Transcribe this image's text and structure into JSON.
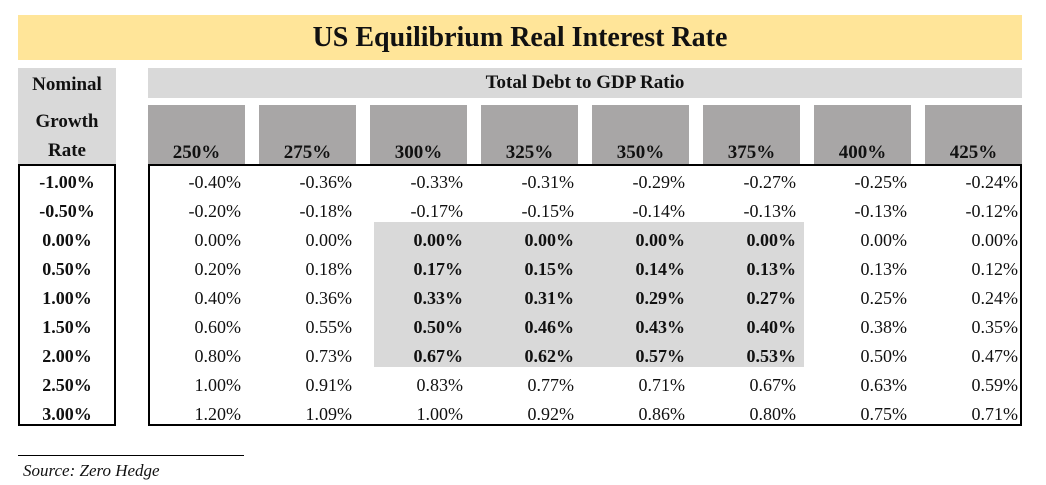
{
  "title": "US Equilibrium Real Interest Rate",
  "row_header": {
    "line1": "Nominal",
    "line2": "Growth",
    "line3": "Rate"
  },
  "column_group_header": "Total Debt to GDP Ratio",
  "columns": [
    "250%",
    "275%",
    "300%",
    "325%",
    "350%",
    "375%",
    "400%",
    "425%"
  ],
  "rows": [
    {
      "label": "-1.00%",
      "values": [
        "-0.40%",
        "-0.36%",
        "-0.33%",
        "-0.31%",
        "-0.29%",
        "-0.27%",
        "-0.25%",
        "-0.24%"
      ]
    },
    {
      "label": "-0.50%",
      "values": [
        "-0.20%",
        "-0.18%",
        "-0.17%",
        "-0.15%",
        "-0.14%",
        "-0.13%",
        "-0.13%",
        "-0.12%"
      ]
    },
    {
      "label": "0.00%",
      "values": [
        "0.00%",
        "0.00%",
        "0.00%",
        "0.00%",
        "0.00%",
        "0.00%",
        "0.00%",
        "0.00%"
      ]
    },
    {
      "label": "0.50%",
      "values": [
        "0.20%",
        "0.18%",
        "0.17%",
        "0.15%",
        "0.14%",
        "0.13%",
        "0.13%",
        "0.12%"
      ]
    },
    {
      "label": "1.00%",
      "values": [
        "0.40%",
        "0.36%",
        "0.33%",
        "0.31%",
        "0.29%",
        "0.27%",
        "0.25%",
        "0.24%"
      ]
    },
    {
      "label": "1.50%",
      "values": [
        "0.60%",
        "0.55%",
        "0.50%",
        "0.46%",
        "0.43%",
        "0.40%",
        "0.38%",
        "0.35%"
      ]
    },
    {
      "label": "2.00%",
      "values": [
        "0.80%",
        "0.73%",
        "0.67%",
        "0.62%",
        "0.57%",
        "0.53%",
        "0.50%",
        "0.47%"
      ]
    },
    {
      "label": "2.50%",
      "values": [
        "1.00%",
        "0.91%",
        "0.83%",
        "0.77%",
        "0.71%",
        "0.67%",
        "0.63%",
        "0.59%"
      ]
    },
    {
      "label": "3.00%",
      "values": [
        "1.20%",
        "1.09%",
        "1.00%",
        "0.92%",
        "0.86%",
        "0.80%",
        "0.75%",
        "0.71%"
      ]
    }
  ],
  "highlight": {
    "rows": [
      2,
      6
    ],
    "columns": [
      2,
      5
    ],
    "color": "#D9D9D9"
  },
  "colors": {
    "title_bg": "#FFE599",
    "header_light": "#D9D9D9",
    "header_dark": "#A8A6A6"
  },
  "source": "Source: Zero Hedge"
}
